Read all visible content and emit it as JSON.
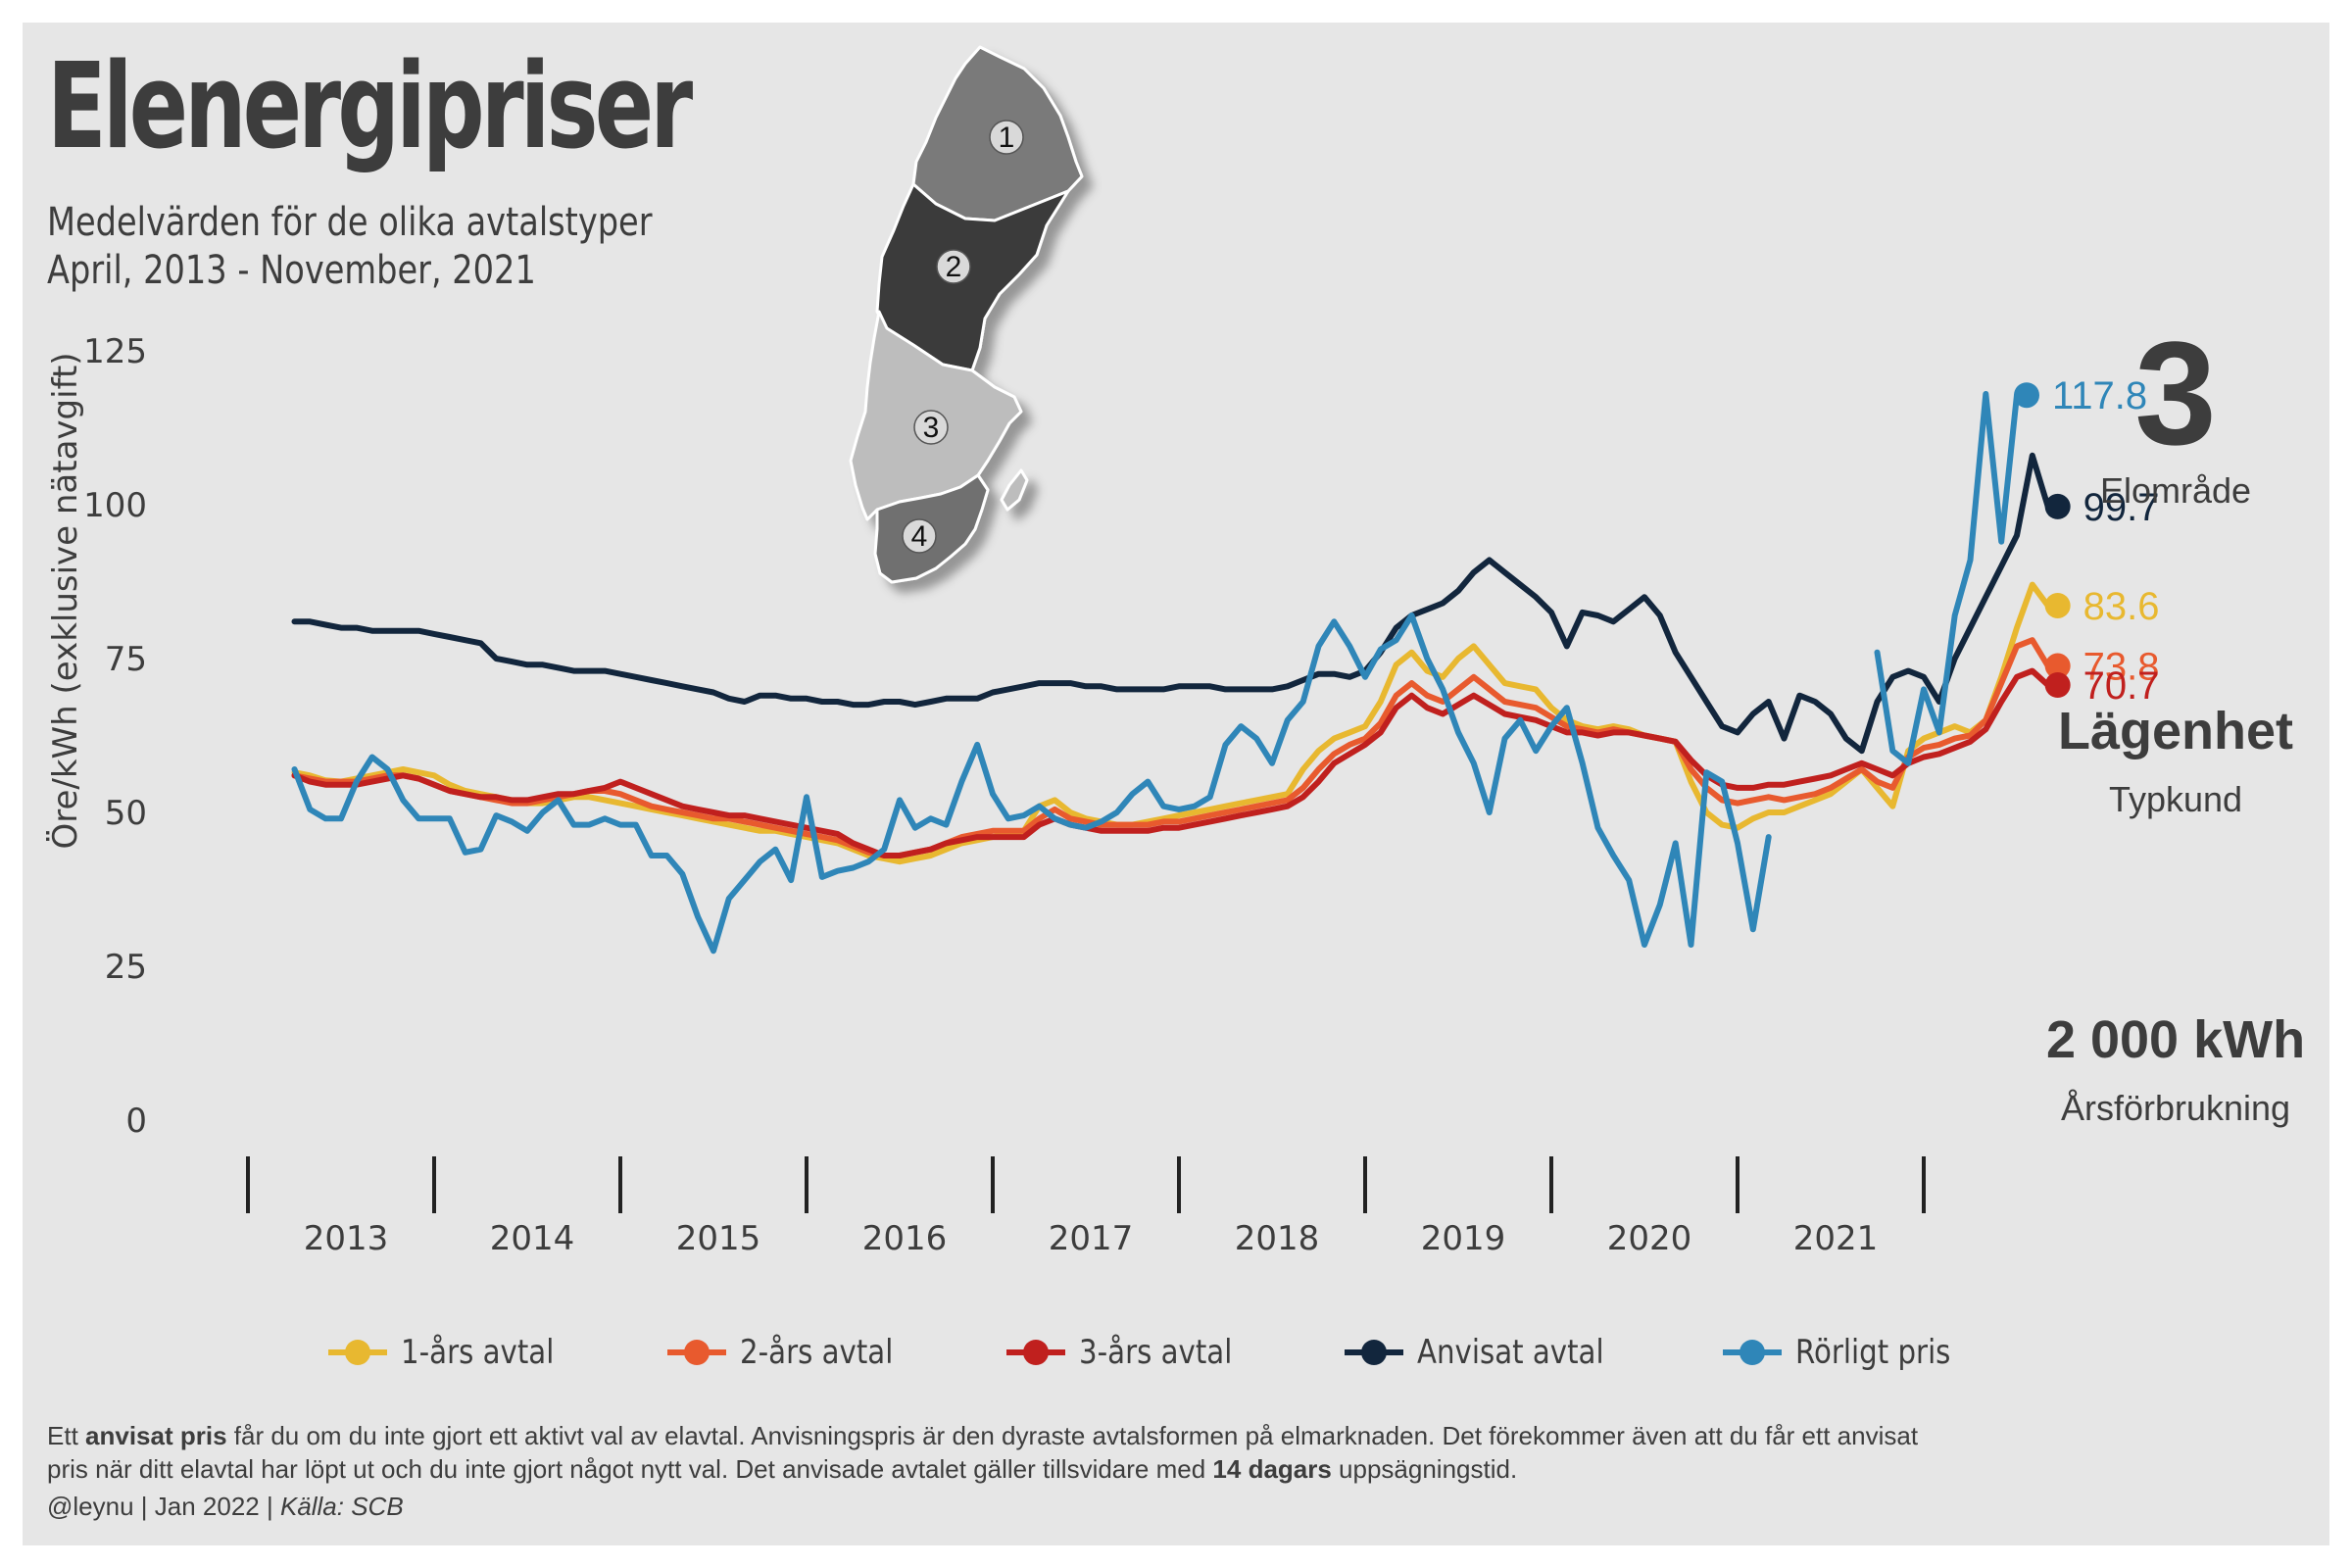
{
  "header": {
    "title": "Elenergipriser",
    "subtitle1": "Medelvärden för de olika avtalstyper",
    "subtitle2": "April, 2013 - November, 2021"
  },
  "map": {
    "regions": [
      {
        "label": "1",
        "color": "#7a7a7a"
      },
      {
        "label": "2",
        "color": "#3a3a3a"
      },
      {
        "label": "3",
        "color": "#bdbdbd"
      },
      {
        "label": "4",
        "color": "#6f6f6f"
      }
    ],
    "selected_region": "3"
  },
  "side": {
    "area_value": "3",
    "area_label": "Elområde",
    "customer_value": "Lägenhet",
    "customer_label": "Typkund",
    "consumption_value": "2 000 kWh",
    "consumption_label": "Årsförbrukning"
  },
  "footnote": {
    "part1": "Ett ",
    "bold1": "anvisat pris",
    "part2": " får du om du inte gjort ett aktivt val av elavtal. Anvisningspris är den dyraste avtalsformen på elmarknaden. Det förekommer även att du får ett anvisat pris när ditt elavtal har löpt ut och du inte gjort något nytt val. Det anvisade avtalet gäller tillsvidare med ",
    "bold2": "14 dagars",
    "part3": " uppsägningstid.",
    "credit": "@leynu | Jan 2022 | ",
    "source": "Källa: SCB"
  },
  "chart_data": {
    "type": "line",
    "x_start": "2013-04",
    "x_end": "2021-11",
    "x_frequency": "monthly",
    "ylabel": "Öre/kWh (exklusive nätavgift)",
    "ylim": [
      0,
      125
    ],
    "yticks": [
      0,
      25,
      50,
      75,
      100,
      125
    ],
    "xticks": [
      "2013",
      "2014",
      "2015",
      "2016",
      "2017",
      "2018",
      "2019",
      "2020",
      "2021"
    ],
    "grid": false,
    "legend_position": "bottom",
    "series": [
      {
        "name": "1-års avtal",
        "color": "#e8b830",
        "end_label": "83.6",
        "values": [
          56.5,
          56.0,
          55.2,
          55.0,
          55.5,
          56.0,
          56.5,
          57.0,
          56.5,
          56.0,
          54.5,
          53.5,
          53.0,
          52.5,
          52.0,
          51.5,
          51.5,
          52.0,
          52.5,
          52.5,
          52.0,
          51.5,
          51.0,
          50.5,
          50.0,
          49.5,
          49.0,
          48.5,
          48.0,
          47.5,
          47.0,
          47.0,
          46.5,
          46.0,
          45.5,
          45.0,
          44.0,
          43.0,
          42.5,
          42.0,
          42.5,
          43.0,
          44.0,
          45.0,
          45.5,
          46.0,
          46.5,
          47.0,
          51.0,
          52.0,
          50.0,
          49.0,
          48.5,
          48.0,
          48.0,
          48.5,
          49.0,
          49.5,
          50.0,
          50.5,
          51.0,
          51.5,
          52.0,
          52.5,
          53.0,
          57.0,
          60.0,
          62.0,
          63.0,
          64.0,
          68.0,
          74.0,
          76.0,
          73.0,
          72.0,
          75.0,
          77.0,
          74.0,
          71.0,
          70.5,
          70.0,
          67.0,
          65.0,
          64.0,
          63.5,
          64.0,
          63.5,
          62.5,
          62.0,
          61.5,
          55.0,
          50.0,
          48.0,
          47.5,
          49.0,
          50.0,
          50.0,
          51.0,
          52.0,
          53.0,
          55.0,
          57.0,
          54.0,
          51.0,
          60.0,
          62.0,
          63.0,
          64.0,
          63.0,
          65.0,
          72.0,
          80.0,
          87.0,
          83.6
        ],
        "markers": []
      },
      {
        "name": "2-års avtal",
        "color": "#e85a2e",
        "end_label": "73.8",
        "values": [
          56.0,
          55.5,
          55.0,
          55.0,
          55.0,
          55.5,
          56.0,
          56.0,
          55.5,
          54.5,
          53.5,
          53.0,
          52.5,
          52.0,
          51.5,
          51.5,
          52.0,
          52.5,
          53.0,
          53.5,
          53.5,
          53.0,
          52.0,
          51.0,
          50.5,
          50.0,
          49.5,
          49.0,
          49.0,
          48.5,
          48.0,
          47.5,
          47.0,
          46.5,
          46.0,
          45.5,
          44.5,
          43.5,
          43.0,
          43.0,
          43.5,
          44.0,
          45.0,
          46.0,
          46.5,
          47.0,
          47.0,
          47.0,
          49.0,
          50.5,
          49.0,
          48.5,
          48.0,
          48.0,
          48.0,
          48.0,
          48.5,
          48.5,
          49.0,
          49.5,
          50.0,
          50.5,
          51.0,
          51.5,
          52.0,
          54.0,
          57.0,
          59.5,
          61.0,
          62.0,
          64.5,
          69.0,
          71.0,
          69.0,
          68.0,
          70.0,
          72.0,
          70.0,
          68.0,
          67.5,
          67.0,
          65.5,
          64.0,
          63.5,
          63.0,
          63.5,
          63.0,
          62.5,
          62.0,
          61.5,
          57.0,
          54.0,
          52.0,
          51.5,
          52.0,
          52.5,
          52.0,
          52.5,
          53.0,
          54.0,
          55.5,
          57.0,
          55.0,
          54.0,
          59.0,
          60.5,
          61.0,
          62.0,
          62.5,
          65.0,
          71.0,
          77.0,
          78.0,
          73.8
        ],
        "markers": []
      },
      {
        "name": "3-års avtal",
        "color": "#c0201e",
        "end_label": "70.7",
        "values": [
          56.0,
          55.0,
          54.5,
          54.5,
          54.5,
          55.0,
          55.5,
          56.0,
          55.5,
          54.5,
          53.5,
          53.0,
          52.5,
          52.5,
          52.0,
          52.0,
          52.5,
          53.0,
          53.0,
          53.5,
          54.0,
          55.0,
          54.0,
          53.0,
          52.0,
          51.0,
          50.5,
          50.0,
          49.5,
          49.5,
          49.0,
          48.5,
          48.0,
          47.5,
          47.0,
          46.5,
          45.0,
          44.0,
          43.0,
          43.0,
          43.5,
          44.0,
          45.0,
          45.5,
          46.0,
          46.0,
          46.0,
          46.0,
          48.0,
          49.0,
          48.0,
          47.5,
          47.0,
          47.0,
          47.0,
          47.0,
          47.5,
          47.5,
          48.0,
          48.5,
          49.0,
          49.5,
          50.0,
          50.5,
          51.0,
          52.5,
          55.0,
          58.0,
          59.5,
          61.0,
          63.0,
          67.0,
          69.0,
          67.0,
          66.0,
          67.5,
          69.0,
          67.5,
          66.0,
          65.5,
          65.0,
          64.0,
          63.0,
          63.0,
          62.5,
          63.0,
          63.0,
          62.5,
          62.0,
          61.5,
          58.5,
          56.0,
          54.5,
          54.0,
          54.0,
          54.5,
          54.5,
          55.0,
          55.5,
          56.0,
          57.0,
          58.0,
          57.0,
          56.0,
          58.0,
          59.0,
          59.5,
          60.5,
          61.5,
          63.5,
          68.0,
          72.0,
          73.0,
          70.7
        ],
        "markers": []
      },
      {
        "name": "Anvisat avtal",
        "color": "#12263d",
        "end_label": "99.7",
        "values": [
          81.0,
          81.0,
          80.5,
          80.0,
          80.0,
          79.5,
          79.5,
          79.5,
          79.5,
          79.0,
          78.5,
          78.0,
          77.5,
          75.0,
          74.5,
          74.0,
          74.0,
          73.5,
          73.0,
          73.0,
          73.0,
          72.5,
          72.0,
          71.5,
          71.0,
          70.5,
          70.0,
          69.5,
          68.5,
          68.0,
          69.0,
          69.0,
          68.5,
          68.5,
          68.0,
          68.0,
          67.5,
          67.5,
          68.0,
          68.0,
          67.5,
          68.0,
          68.5,
          68.5,
          68.5,
          69.5,
          70.0,
          70.5,
          71.0,
          71.0,
          71.0,
          70.5,
          70.5,
          70.0,
          70.0,
          70.0,
          70.0,
          70.5,
          70.5,
          70.5,
          70.0,
          70.0,
          70.0,
          70.0,
          70.5,
          71.5,
          72.5,
          72.5,
          72.0,
          73.0,
          76.0,
          80.0,
          82.0,
          83.0,
          84.0,
          86.0,
          89.0,
          91.0,
          89.0,
          87.0,
          85.0,
          82.5,
          77.0,
          82.5,
          82.0,
          81.0,
          83.0,
          85.0,
          82.0,
          76.0,
          72.0,
          68.0,
          64.0,
          63.0,
          66.0,
          68.0,
          62.0,
          69.0,
          68.0,
          66.0,
          62.0,
          60.0,
          68.0,
          72.0,
          73.0,
          72.0,
          68.0,
          75.0,
          80.0,
          85.0,
          90.0,
          95.0,
          108.0,
          99.7
        ],
        "markers": []
      },
      {
        "name": "Rörligt pris",
        "color": "#2f86b8",
        "end_label": "117.8",
        "values": [
          57.0,
          50.5,
          49.0,
          49.0,
          55.0,
          59.0,
          57.0,
          52.0,
          49.0,
          49.0,
          49.0,
          43.5,
          44.0,
          49.5,
          48.5,
          47.0,
          50.0,
          52.0,
          48.0,
          48.0,
          49.0,
          48.0,
          48.0,
          43.0,
          43.0,
          40.0,
          33.0,
          27.5,
          36.0,
          39.0,
          42.0,
          44.0,
          39.0,
          52.5,
          39.5,
          40.5,
          41.0,
          42.0,
          44.0,
          52.0,
          47.5,
          49.0,
          48.0,
          55.0,
          61.0,
          53.0,
          49.0,
          49.5,
          51.0,
          49.0,
          48.0,
          47.5,
          48.5,
          50.0,
          53.0,
          55.0,
          51.0,
          50.5,
          51.0,
          52.5,
          61.0,
          64.0,
          62.0,
          58.0,
          65.0,
          68.0,
          77.0,
          81.0,
          77.0,
          72.0,
          76.5,
          78.0,
          82.0,
          75.0,
          70.0,
          63.0,
          58.0,
          50.0,
          62.0,
          65.0,
          60.0,
          64.0,
          67.0,
          58.0,
          47.5,
          43.0,
          39.0,
          28.5,
          35.0,
          45.0,
          28.5,
          56.5,
          55.0,
          45.0,
          31.0,
          46.0,
          null,
          null,
          null,
          null,
          null,
          null,
          76.0,
          60.0,
          58.0,
          70.0,
          63.0,
          82.0,
          91.0,
          118.0,
          94.0,
          117.8
        ],
        "markers": []
      }
    ]
  }
}
